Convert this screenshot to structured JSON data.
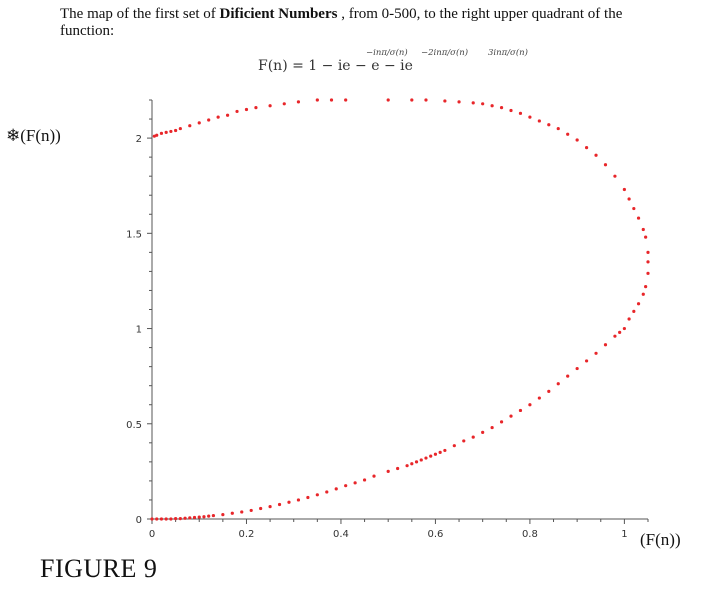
{
  "intro": {
    "prefix": "The map of the first set of ",
    "bold": "Dificient Numbers",
    "suffix": " , from 0-500, to the right upper quadrant of the function:"
  },
  "formula": {
    "main": "F(n) = 1 − ie     − e     − ie   ",
    "exp1": "−inπ/σ(n)",
    "exp2": "−2inπ/σ(n)",
    "exp3": "3inπ/σ(n)"
  },
  "labels": {
    "y": "❄(F(n))",
    "x": "(F(n))",
    "figure": "FIGURE 9"
  },
  "chart_data": {
    "type": "scatter",
    "xlim": [
      0,
      1.05
    ],
    "ylim": [
      0,
      2.2
    ],
    "x_ticks": [
      "0",
      "0.2",
      "0.4",
      "0.6",
      "0.8",
      "1"
    ],
    "y_ticks": [
      "0",
      "0.5",
      "1",
      "1.5",
      "2"
    ],
    "grid": false,
    "color": "#e8262a",
    "points": [
      [
        0.0,
        0.0
      ],
      [
        0.01,
        0.0
      ],
      [
        0.02,
        0.0
      ],
      [
        0.03,
        0.0
      ],
      [
        0.04,
        0.0
      ],
      [
        0.05,
        0.002
      ],
      [
        0.06,
        0.002
      ],
      [
        0.07,
        0.004
      ],
      [
        0.08,
        0.006
      ],
      [
        0.09,
        0.008
      ],
      [
        0.1,
        0.01
      ],
      [
        0.11,
        0.012
      ],
      [
        0.12,
        0.015
      ],
      [
        0.13,
        0.018
      ],
      [
        0.15,
        0.023
      ],
      [
        0.17,
        0.03
      ],
      [
        0.19,
        0.037
      ],
      [
        0.21,
        0.045
      ],
      [
        0.23,
        0.055
      ],
      [
        0.25,
        0.065
      ],
      [
        0.27,
        0.076
      ],
      [
        0.29,
        0.088
      ],
      [
        0.31,
        0.1
      ],
      [
        0.33,
        0.113
      ],
      [
        0.35,
        0.127
      ],
      [
        0.37,
        0.142
      ],
      [
        0.39,
        0.158
      ],
      [
        0.41,
        0.175
      ],
      [
        0.43,
        0.19
      ],
      [
        0.45,
        0.205
      ],
      [
        0.47,
        0.225
      ],
      [
        0.5,
        0.25
      ],
      [
        0.52,
        0.265
      ],
      [
        0.54,
        0.28
      ],
      [
        0.55,
        0.29
      ],
      [
        0.56,
        0.3
      ],
      [
        0.57,
        0.31
      ],
      [
        0.58,
        0.32
      ],
      [
        0.59,
        0.33
      ],
      [
        0.6,
        0.34
      ],
      [
        0.61,
        0.35
      ],
      [
        0.62,
        0.36
      ],
      [
        0.64,
        0.385
      ],
      [
        0.66,
        0.41
      ],
      [
        0.68,
        0.43
      ],
      [
        0.7,
        0.455
      ],
      [
        0.72,
        0.48
      ],
      [
        0.74,
        0.51
      ],
      [
        0.76,
        0.54
      ],
      [
        0.78,
        0.57
      ],
      [
        0.8,
        0.6
      ],
      [
        0.82,
        0.635
      ],
      [
        0.84,
        0.67
      ],
      [
        0.86,
        0.71
      ],
      [
        0.88,
        0.75
      ],
      [
        0.9,
        0.79
      ],
      [
        0.92,
        0.83
      ],
      [
        0.94,
        0.87
      ],
      [
        0.96,
        0.915
      ],
      [
        0.98,
        0.96
      ],
      [
        0.99,
        0.98
      ],
      [
        1.0,
        1.0
      ],
      [
        1.01,
        1.05
      ],
      [
        1.02,
        1.09
      ],
      [
        1.03,
        1.13
      ],
      [
        1.04,
        1.18
      ],
      [
        1.045,
        1.22
      ],
      [
        1.05,
        1.29
      ],
      [
        1.05,
        1.35
      ],
      [
        1.05,
        1.4
      ],
      [
        1.045,
        1.48
      ],
      [
        1.04,
        1.52
      ],
      [
        1.03,
        1.58
      ],
      [
        1.02,
        1.63
      ],
      [
        1.01,
        1.68
      ],
      [
        1.0,
        1.73
      ],
      [
        0.98,
        1.8
      ],
      [
        0.96,
        1.86
      ],
      [
        0.94,
        1.91
      ],
      [
        0.92,
        1.95
      ],
      [
        0.9,
        1.99
      ],
      [
        0.88,
        2.02
      ],
      [
        0.86,
        2.05
      ],
      [
        0.84,
        2.07
      ],
      [
        0.82,
        2.09
      ],
      [
        0.8,
        2.11
      ],
      [
        0.78,
        2.13
      ],
      [
        0.76,
        2.145
      ],
      [
        0.74,
        2.16
      ],
      [
        0.72,
        2.17
      ],
      [
        0.7,
        2.18
      ],
      [
        0.68,
        2.185
      ],
      [
        0.65,
        2.19
      ],
      [
        0.62,
        2.195
      ],
      [
        0.58,
        2.2
      ],
      [
        0.55,
        2.2
      ],
      [
        0.5,
        2.2
      ],
      [
        0.41,
        2.2
      ],
      [
        0.38,
        2.2
      ],
      [
        0.35,
        2.2
      ],
      [
        0.31,
        2.19
      ],
      [
        0.28,
        2.18
      ],
      [
        0.25,
        2.17
      ],
      [
        0.22,
        2.16
      ],
      [
        0.2,
        2.15
      ],
      [
        0.18,
        2.14
      ],
      [
        0.16,
        2.12
      ],
      [
        0.14,
        2.11
      ],
      [
        0.12,
        2.095
      ],
      [
        0.1,
        2.08
      ],
      [
        0.08,
        2.065
      ],
      [
        0.06,
        2.05
      ],
      [
        0.05,
        2.04
      ],
      [
        0.04,
        2.035
      ],
      [
        0.03,
        2.03
      ],
      [
        0.02,
        2.025
      ],
      [
        0.01,
        2.015
      ],
      [
        0.005,
        2.01
      ]
    ]
  }
}
